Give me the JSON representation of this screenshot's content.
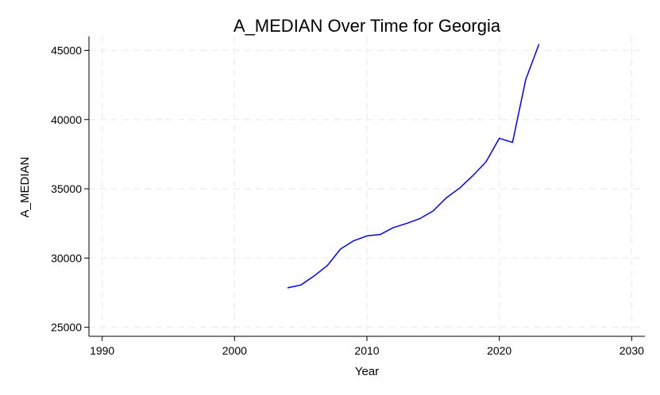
{
  "chart_data": {
    "type": "line",
    "title": "A_MEDIAN Over Time for Georgia",
    "xlabel": "Year",
    "ylabel": "A_MEDIAN",
    "xlim": [
      1989,
      2031
    ],
    "ylim": [
      24350,
      46000
    ],
    "xticks": [
      1990,
      2000,
      2010,
      2020,
      2030
    ],
    "xtick_labels": [
      "1990",
      "2000",
      "2010",
      "2020",
      "2030"
    ],
    "yticks": [
      25000,
      30000,
      35000,
      40000,
      45000
    ],
    "ytick_labels": [
      "25000",
      "30000",
      "35000",
      "40000",
      "45000"
    ],
    "grid": true,
    "series": [
      {
        "color": "#0000ff",
        "x": [
          2004,
          2005,
          2006,
          2007,
          2008,
          2009,
          2010,
          2011,
          2012,
          2013,
          2014,
          2015,
          2016,
          2017,
          2018,
          2019,
          2020,
          2021,
          2022,
          2023
        ],
        "y": [
          27850,
          28050,
          28700,
          29450,
          30650,
          31250,
          31600,
          31700,
          32200,
          32500,
          32850,
          33400,
          34350,
          35050,
          35950,
          36950,
          38650,
          38350,
          42900,
          45450
        ]
      }
    ]
  }
}
